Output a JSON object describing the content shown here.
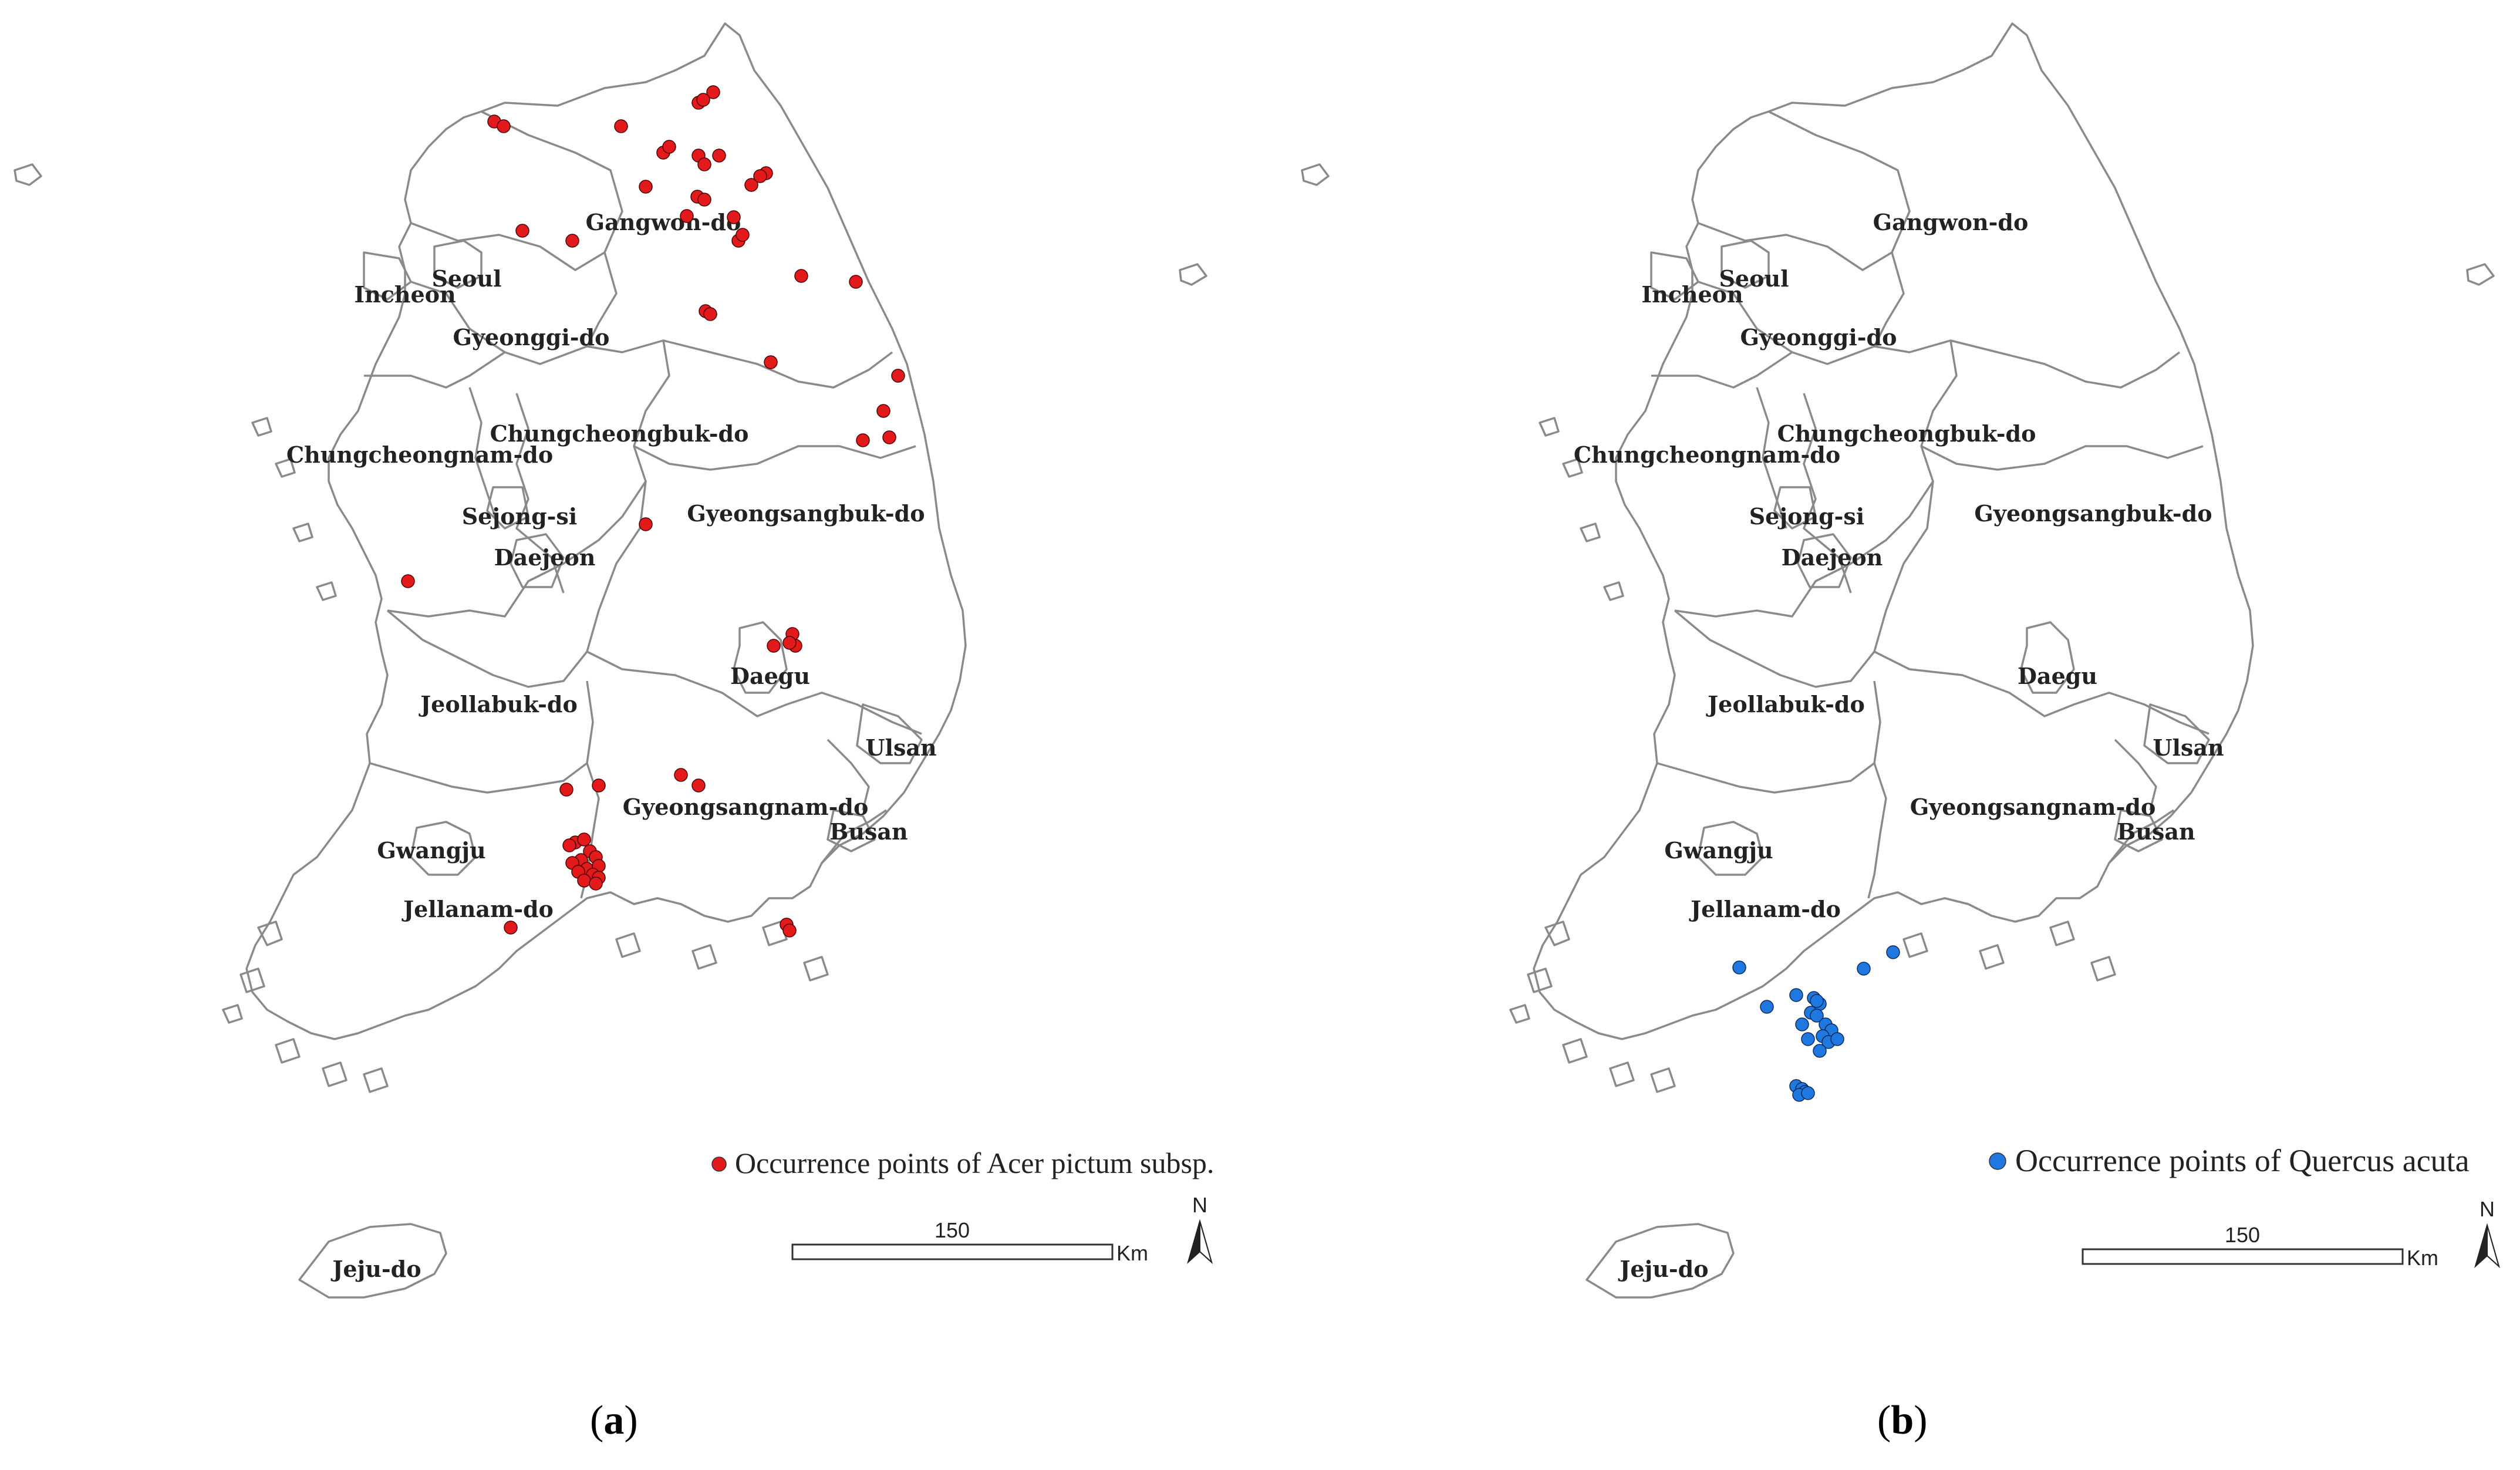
{
  "panels": [
    {
      "id": "a",
      "caption_letter": "a",
      "legend": "Occurrence points of Acer pictum subsp.",
      "marker_color": "#e31a1c",
      "scale_label": "150",
      "scale_unit": "Km",
      "north_label": "N",
      "regions": [
        {
          "id": "gangwon",
          "label": "Gangwon-do"
        },
        {
          "id": "seoul",
          "label": "Seoul"
        },
        {
          "id": "incheon",
          "label": "Incheon"
        },
        {
          "id": "gyeonggi",
          "label": "Gyeonggi-do"
        },
        {
          "id": "chungbuk",
          "label": "Chungcheongbuk-do"
        },
        {
          "id": "chungnam",
          "label": "Chungcheongnam-do"
        },
        {
          "id": "sejong",
          "label": "Sejong-si"
        },
        {
          "id": "daejeon",
          "label": "Daejeon"
        },
        {
          "id": "gyeongbuk",
          "label": "Gyeongsangbuk-do"
        },
        {
          "id": "daegu",
          "label": "Daegu"
        },
        {
          "id": "jeonbuk",
          "label": "Jeollabuk-do"
        },
        {
          "id": "ulsan",
          "label": "Ulsan"
        },
        {
          "id": "gyeongnam",
          "label": "Gyeongsangnam-do"
        },
        {
          "id": "busan",
          "label": "Busan"
        },
        {
          "id": "gwangju",
          "label": "Gwangju"
        },
        {
          "id": "jeonnam",
          "label": "Jellanam-do"
        },
        {
          "id": "jeju",
          "label": "Jeju-do"
        }
      ]
    },
    {
      "id": "b",
      "caption_letter": "b",
      "legend": "Occurrence points of Quercus acuta",
      "marker_color": "#1f78e0",
      "scale_label": "150",
      "scale_unit": "Km",
      "north_label": "N",
      "regions": [
        {
          "id": "gangwon",
          "label": "Gangwon-do"
        },
        {
          "id": "seoul",
          "label": "Seoul"
        },
        {
          "id": "incheon",
          "label": "Incheon"
        },
        {
          "id": "gyeonggi",
          "label": "Gyeonggi-do"
        },
        {
          "id": "chungbuk",
          "label": "Chungcheongbuk-do"
        },
        {
          "id": "chungnam",
          "label": "Chungcheongnam-do"
        },
        {
          "id": "sejong",
          "label": "Sejong-si"
        },
        {
          "id": "daejeon",
          "label": "Daejeon"
        },
        {
          "id": "gyeongbuk",
          "label": "Gyeongsangbuk-do"
        },
        {
          "id": "daegu",
          "label": "Daegu"
        },
        {
          "id": "jeonbuk",
          "label": "Jeollabuk-do"
        },
        {
          "id": "ulsan",
          "label": "Ulsan"
        },
        {
          "id": "gyeongnam",
          "label": "Gyeongsangnam-do"
        },
        {
          "id": "busan",
          "label": "Busan"
        },
        {
          "id": "gwangju",
          "label": "Gwangju"
        },
        {
          "id": "jeonnam",
          "label": "Jellanam-do"
        },
        {
          "id": "jeju",
          "label": "Jeju-do"
        }
      ]
    }
  ]
}
